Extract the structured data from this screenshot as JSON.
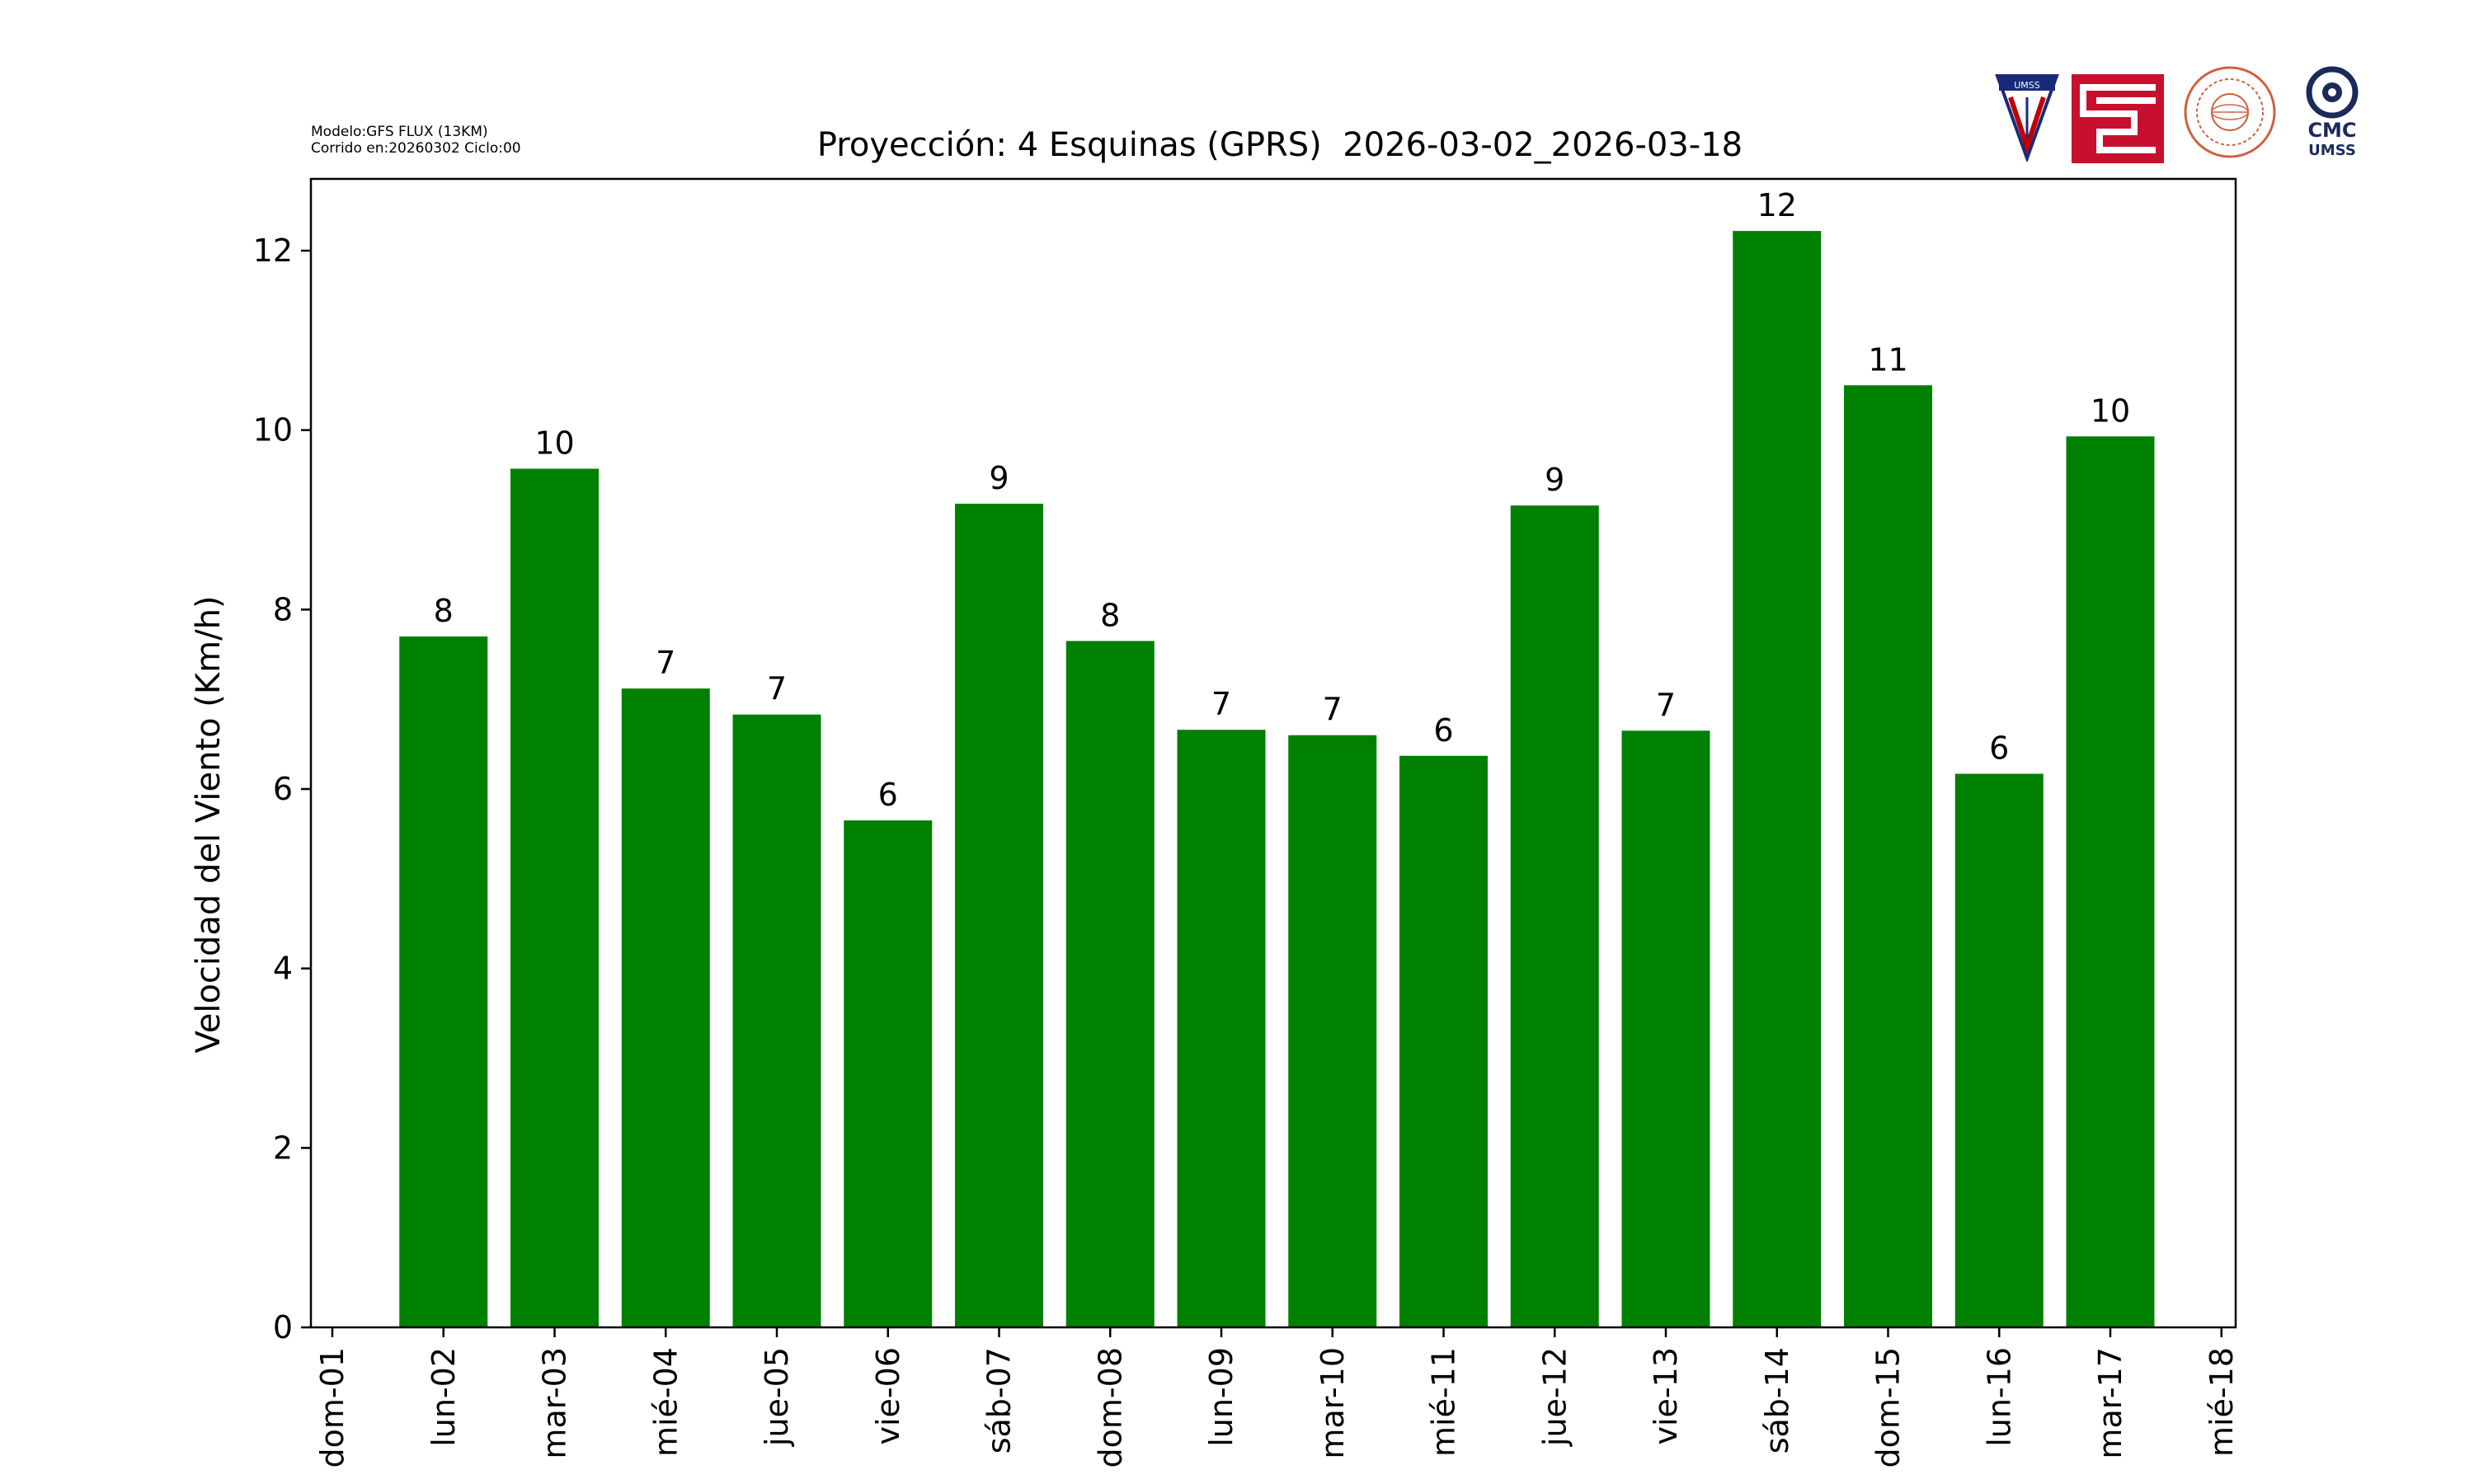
{
  "meta": {
    "model_line": "Modelo:GFS FLUX (13KM)",
    "run_line": "Corrido en:20260302 Ciclo:00"
  },
  "logos": [
    {
      "name": "umss-shield-logo",
      "text": "UMSS"
    },
    {
      "name": "red-maze-logo",
      "text": ""
    },
    {
      "name": "seal-logo",
      "text": ""
    },
    {
      "name": "cmc-umss-logo",
      "text": "CMC UMSS"
    }
  ],
  "colors": {
    "bar": "#008000",
    "axis": "#000000",
    "background": "#ffffff"
  },
  "chart_data": {
    "type": "bar",
    "title": "Proyección: 4 Esquinas (GPRS)  2026-03-02_2026-03-18",
    "xlabel": "",
    "ylabel": "Velocidad del Viento (Km/h)",
    "ylim": [
      0,
      12.8
    ],
    "yticks": [
      0,
      2,
      4,
      6,
      8,
      10,
      12
    ],
    "grid": false,
    "legend": "none",
    "tick_labels": [
      "dom-01",
      "lun-02",
      "mar-03",
      "mié-04",
      "jue-05",
      "vie-06",
      "sáb-07",
      "dom-08",
      "lun-09",
      "mar-10",
      "mié-11",
      "jue-12",
      "vie-13",
      "sáb-14",
      "dom-15",
      "lun-16",
      "mar-17",
      "mié-18"
    ],
    "categories": [
      "lun-02",
      "mar-03",
      "mié-04",
      "jue-05",
      "vie-06",
      "sáb-07",
      "dom-08",
      "lun-09",
      "mar-10",
      "mié-11",
      "jue-12",
      "vie-13",
      "sáb-14",
      "dom-15",
      "lun-16",
      "mar-17"
    ],
    "values": [
      7.7,
      9.57,
      7.12,
      6.83,
      5.65,
      9.18,
      7.65,
      6.66,
      6.6,
      6.37,
      9.16,
      6.65,
      12.22,
      10.5,
      6.17,
      9.93
    ],
    "data_labels": [
      "8",
      "10",
      "7",
      "7",
      "6",
      "9",
      "8",
      "7",
      "7",
      "6",
      "9",
      "7",
      "12",
      "11",
      "6",
      "10"
    ]
  }
}
